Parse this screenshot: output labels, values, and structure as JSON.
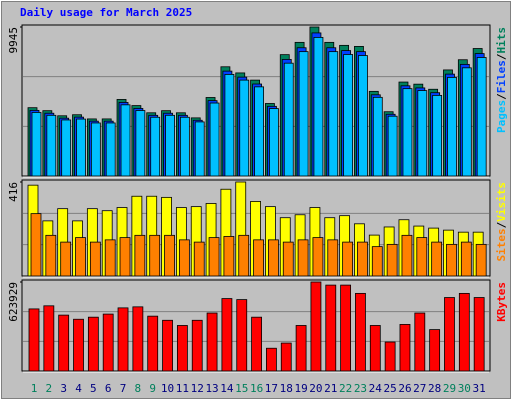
{
  "title": "Daily usage for March 2025",
  "title_color": "#0000ff",
  "categories": [
    "1",
    "2",
    "3",
    "4",
    "5",
    "6",
    "7",
    "8",
    "9",
    "10",
    "11",
    "12",
    "13",
    "14",
    "15",
    "16",
    "17",
    "18",
    "19",
    "20",
    "21",
    "22",
    "23",
    "24",
    "25",
    "26",
    "27",
    "28",
    "29",
    "30",
    "31"
  ],
  "label_colors": [
    "#00805c",
    "#00805c",
    "#000080",
    "#000080",
    "#000080",
    "#000080",
    "#000080",
    "#00805c",
    "#00805c",
    "#000080",
    "#000080",
    "#000080",
    "#000080",
    "#000080",
    "#00805c",
    "#00805c",
    "#000080",
    "#000080",
    "#000080",
    "#000080",
    "#000080",
    "#00805c",
    "#00805c",
    "#000080",
    "#000080",
    "#000080",
    "#000080",
    "#000080",
    "#00805c",
    "#00805c",
    "#000080"
  ],
  "legend_separator": "/",
  "chart_data": [
    {
      "type": "bar",
      "ylim": [
        0,
        9945
      ],
      "yticks": [
        9945
      ],
      "gridlines": [
        3315,
        6630
      ],
      "series": [
        {
          "name": "Hits",
          "color": "#00805c",
          "values": [
            4560,
            4360,
            4020,
            4090,
            3810,
            3810,
            5110,
            4700,
            4220,
            4360,
            4220,
            3880,
            5240,
            7290,
            6880,
            6400,
            4840,
            8100,
            8920,
            9945,
            8920,
            8720,
            8650,
            5650,
            4290,
            6270,
            6130,
            5790,
            7080,
            7760,
            8510
          ]
        },
        {
          "name": "Files",
          "color": "#0040ff",
          "values": [
            4380,
            4190,
            3860,
            3930,
            3660,
            3660,
            4910,
            4510,
            4050,
            4190,
            4050,
            3720,
            5030,
            7000,
            6600,
            6140,
            4650,
            7780,
            8560,
            9550,
            8560,
            8370,
            8300,
            5420,
            4120,
            6020,
            5880,
            5560,
            6800,
            7450,
            8170
          ]
        },
        {
          "name": "Pages",
          "color": "#00c0ff",
          "values": [
            4240,
            4050,
            3740,
            3800,
            3540,
            3540,
            4750,
            4370,
            3920,
            4050,
            3920,
            3610,
            4870,
            6780,
            6400,
            5950,
            4500,
            7530,
            8300,
            9250,
            8300,
            8110,
            8040,
            5250,
            3990,
            5830,
            5700,
            5380,
            6580,
            7220,
            7910
          ]
        }
      ]
    },
    {
      "type": "bar",
      "ylim": [
        0,
        416
      ],
      "yticks": [
        416
      ],
      "gridlines": [
        139,
        277
      ],
      "series": [
        {
          "name": "Visits",
          "color": "#ffff00",
          "values": [
            402,
            244,
            298,
            244,
            298,
            289,
            303,
            353,
            353,
            348,
            303,
            307,
            321,
            384,
            416,
            330,
            307,
            258,
            271,
            303,
            258,
            267,
            231,
            181,
            217,
            249,
            221,
            212,
            203,
            194,
            194
          ]
        },
        {
          "name": "Sites",
          "color": "#ff8000",
          "values": [
            276,
            180,
            150,
            170,
            150,
            160,
            170,
            180,
            180,
            180,
            160,
            150,
            170,
            175,
            180,
            160,
            160,
            150,
            160,
            170,
            160,
            150,
            150,
            130,
            140,
            180,
            170,
            150,
            140,
            150,
            140
          ]
        }
      ]
    },
    {
      "type": "bar",
      "ylim": [
        0,
        623929
      ],
      "yticks": [
        623929
      ],
      "gridlines": [
        207976,
        415953
      ],
      "series": [
        {
          "name": "KBytes",
          "color": "#ff0000",
          "values": [
            435300,
            457000,
            391800,
            362800,
            377300,
            399000,
            442600,
            449800,
            384500,
            355500,
            319200,
            355500,
            406300,
            507900,
            500600,
            377300,
            159600,
            195900,
            319200,
            623929,
            602200,
            602200,
            544100,
            319200,
            203100,
            326500,
            406300,
            290200,
            515100,
            544100,
            515100
          ]
        }
      ]
    }
  ]
}
